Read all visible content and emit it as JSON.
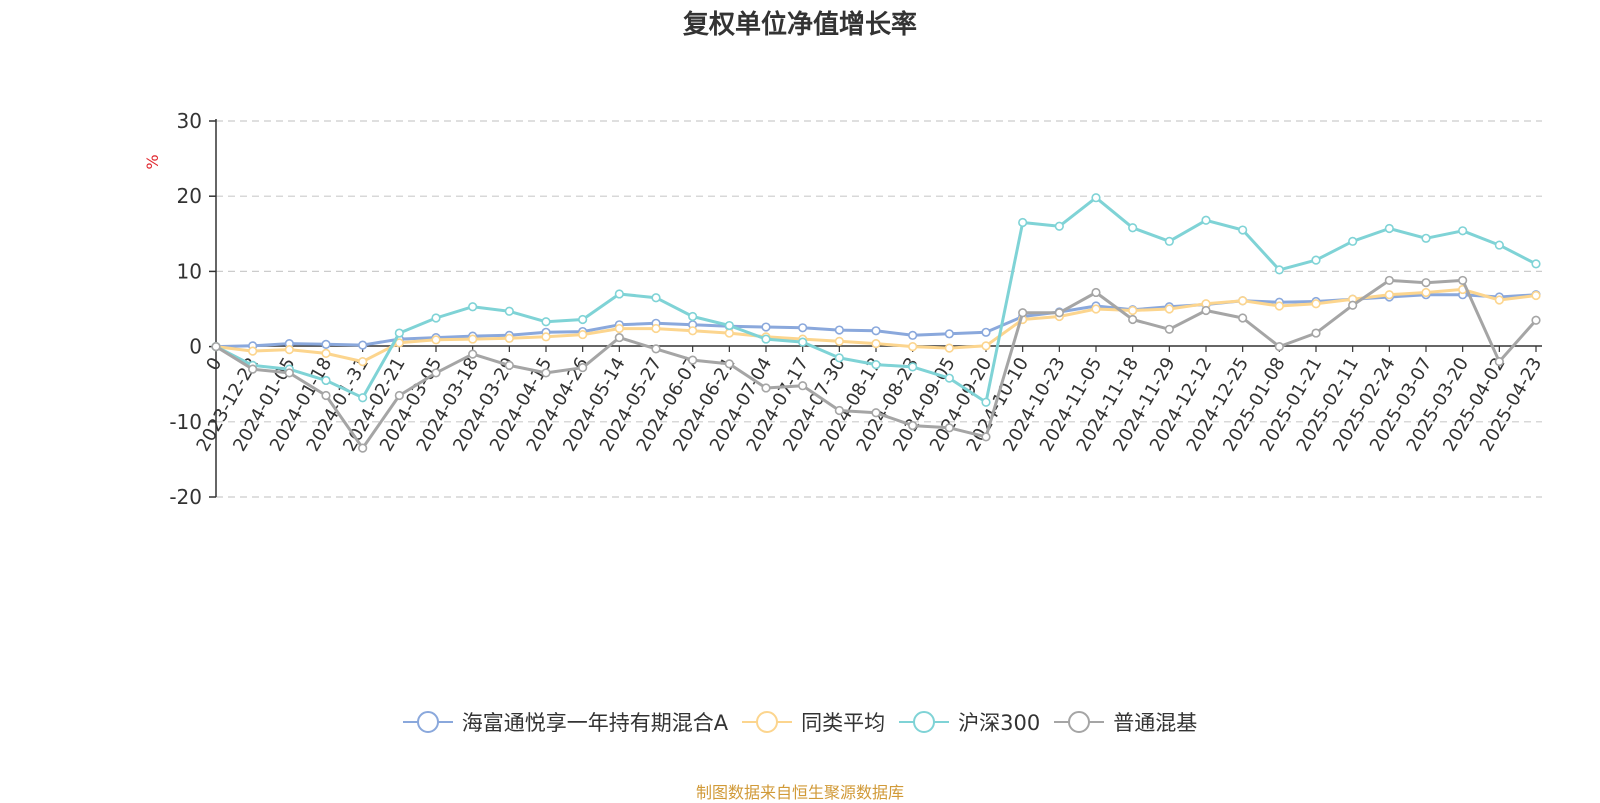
{
  "chart_data": {
    "type": "line",
    "title": "复权单位净值增长率",
    "ylabel": "%",
    "ylim": [
      -20,
      30
    ],
    "yticks": [
      -20,
      -10,
      0,
      10,
      20,
      30
    ],
    "grid": true,
    "legend_position": "bottom",
    "x": [
      "0",
      "2023-12-22",
      "2024-01-05",
      "2024-01-18",
      "2024-01-31",
      "2024-02-21",
      "2024-03-05",
      "2024-03-18",
      "2024-03-29",
      "2024-04-15",
      "2024-04-26",
      "2024-05-14",
      "2024-05-27",
      "2024-06-07",
      "2024-06-21",
      "2024-07-04",
      "2024-07-17",
      "2024-07-30",
      "2024-08-12",
      "2024-08-23",
      "2024-09-05",
      "2024-09-20",
      "2024-10-10",
      "2024-10-23",
      "2024-11-05",
      "2024-11-18",
      "2024-11-29",
      "2024-12-12",
      "2024-12-25",
      "2025-01-08",
      "2025-01-21",
      "2025-02-11",
      "2025-02-24",
      "2025-03-07",
      "2025-03-20",
      "2025-04-02",
      "2025-04-23"
    ],
    "series": [
      {
        "name": "海富通悦享一年持有期混合A",
        "color": "#8aa8dc",
        "values": [
          0,
          0.1,
          0.4,
          0.3,
          0.2,
          1.0,
          1.2,
          1.4,
          1.5,
          1.9,
          2.0,
          2.9,
          3.1,
          2.9,
          2.7,
          2.6,
          2.5,
          2.2,
          2.1,
          1.5,
          1.7,
          1.9,
          4.0,
          4.6,
          5.4,
          4.9,
          5.3,
          5.6,
          6.1,
          5.9,
          6.0,
          6.3,
          6.6,
          6.9,
          6.9,
          6.6,
          6.9
        ]
      },
      {
        "name": "同类平均",
        "color": "#fcd58e",
        "values": [
          0,
          -0.6,
          -0.4,
          -0.9,
          -2.0,
          0.5,
          0.9,
          1.0,
          1.1,
          1.3,
          1.6,
          2.4,
          2.4,
          2.1,
          1.8,
          1.3,
          1.0,
          0.7,
          0.4,
          0,
          -0.2,
          0.1,
          3.6,
          4.0,
          5.0,
          4.8,
          5.0,
          5.7,
          6.1,
          5.4,
          5.7,
          6.3,
          6.9,
          7.2,
          7.6,
          6.2,
          6.8
        ]
      },
      {
        "name": "沪深300",
        "color": "#7fd3d6",
        "values": [
          0,
          -2.5,
          -3.0,
          -4.5,
          -6.8,
          1.8,
          3.8,
          5.3,
          4.7,
          3.3,
          3.6,
          7.0,
          6.5,
          4.0,
          2.8,
          1.0,
          0.6,
          -1.5,
          -2.4,
          -2.7,
          -4.2,
          -7.4,
          16.5,
          16.0,
          19.8,
          15.8,
          14.0,
          16.8,
          15.5,
          10.2,
          11.5,
          14.0,
          15.7,
          14.4,
          15.4,
          13.5,
          11.0
        ]
      },
      {
        "name": "普通混基",
        "color": "#a5a5a5",
        "values": [
          0,
          -3.0,
          -3.5,
          -6.5,
          -13.5,
          -6.5,
          -3.5,
          -1.0,
          -2.5,
          -3.5,
          -2.8,
          1.2,
          -0.3,
          -1.8,
          -2.3,
          -5.5,
          -5.2,
          -8.5,
          -8.8,
          -10.5,
          -10.8,
          -12.0,
          4.5,
          4.5,
          7.2,
          3.6,
          2.3,
          4.8,
          3.8,
          0.0,
          1.8,
          5.5,
          8.8,
          8.5,
          8.8,
          -2.0,
          3.5
        ]
      }
    ]
  },
  "source_note": "制图数据来自恒生聚源数据库"
}
